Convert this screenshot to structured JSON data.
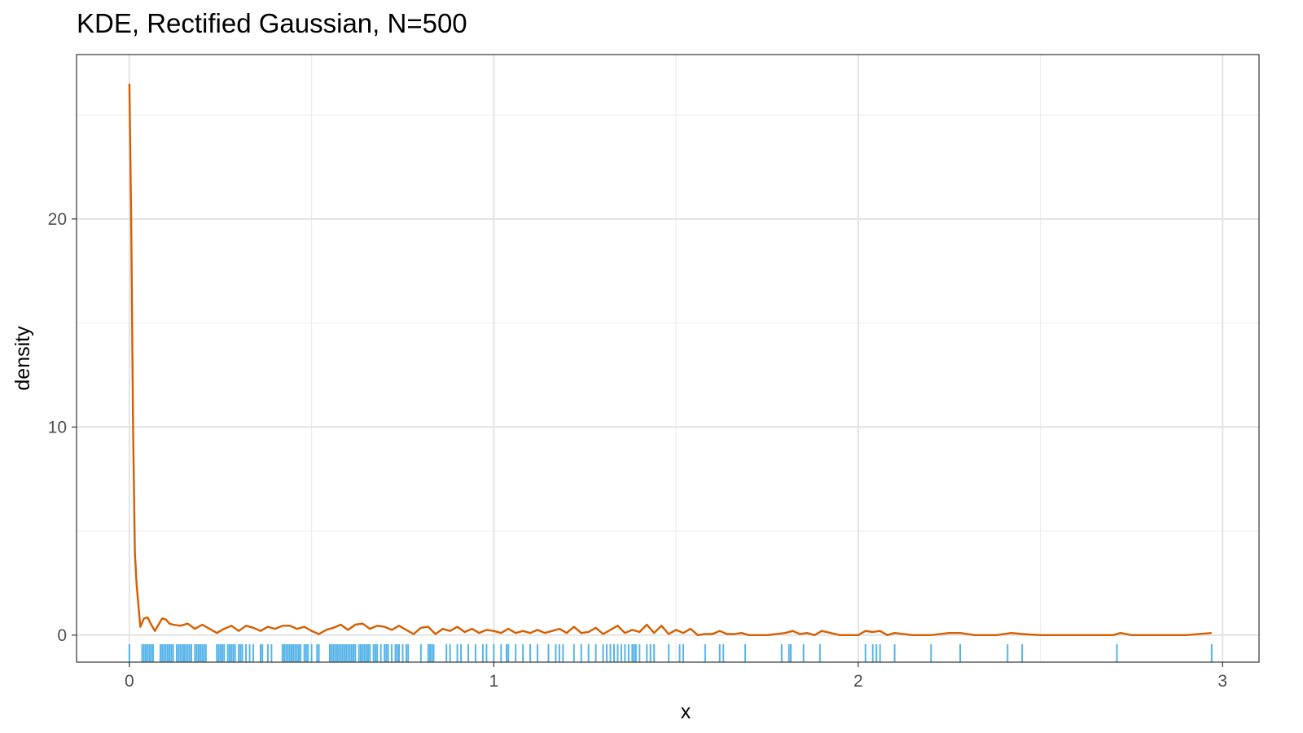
{
  "chart_data": {
    "type": "line",
    "title": "KDE, Rectified Gaussian, N=500",
    "xlabel": "x",
    "ylabel": "density",
    "xlim": [
      -0.145,
      3.1
    ],
    "ylim": [
      -1.3,
      27.9
    ],
    "x_ticks": [
      0,
      1,
      2,
      3
    ],
    "y_ticks": [
      0,
      10,
      20
    ],
    "x_tick_labels": [
      "0",
      "1",
      "2",
      "3"
    ],
    "y_tick_labels": [
      "0",
      "10",
      "20"
    ],
    "minor_x": [
      0.5,
      1.5,
      2.5
    ],
    "minor_y": [
      5,
      15,
      25
    ],
    "grid": true,
    "series": [
      {
        "color": "#D55E00",
        "x": [
          0,
          0.005,
          0.01,
          0.015,
          0.02,
          0.03,
          0.04,
          0.05,
          0.06,
          0.07,
          0.08,
          0.09,
          0.1,
          0.11,
          0.12,
          0.14,
          0.16,
          0.18,
          0.2,
          0.22,
          0.24,
          0.26,
          0.28,
          0.3,
          0.32,
          0.34,
          0.36,
          0.38,
          0.4,
          0.42,
          0.44,
          0.46,
          0.48,
          0.5,
          0.52,
          0.54,
          0.56,
          0.58,
          0.6,
          0.62,
          0.64,
          0.66,
          0.68,
          0.7,
          0.72,
          0.74,
          0.76,
          0.78,
          0.8,
          0.82,
          0.84,
          0.86,
          0.88,
          0.9,
          0.92,
          0.94,
          0.96,
          0.98,
          1.0,
          1.02,
          1.04,
          1.06,
          1.08,
          1.1,
          1.12,
          1.14,
          1.16,
          1.18,
          1.2,
          1.22,
          1.24,
          1.26,
          1.28,
          1.3,
          1.32,
          1.34,
          1.36,
          1.38,
          1.4,
          1.42,
          1.44,
          1.46,
          1.48,
          1.5,
          1.52,
          1.54,
          1.56,
          1.58,
          1.6,
          1.62,
          1.64,
          1.66,
          1.68,
          1.7,
          1.75,
          1.8,
          1.82,
          1.84,
          1.86,
          1.88,
          1.9,
          1.95,
          2.0,
          2.02,
          2.04,
          2.06,
          2.08,
          2.1,
          2.15,
          2.2,
          2.25,
          2.28,
          2.32,
          2.38,
          2.42,
          2.45,
          2.5,
          2.6,
          2.7,
          2.72,
          2.75,
          2.8,
          2.9,
          2.97
        ],
        "y": [
          26.5,
          20.0,
          10.0,
          4.0,
          2.4,
          0.4,
          0.8,
          0.85,
          0.5,
          0.2,
          0.5,
          0.8,
          0.75,
          0.55,
          0.5,
          0.45,
          0.55,
          0.3,
          0.5,
          0.3,
          0.1,
          0.3,
          0.45,
          0.2,
          0.45,
          0.35,
          0.2,
          0.4,
          0.3,
          0.45,
          0.45,
          0.3,
          0.4,
          0.2,
          0.05,
          0.25,
          0.35,
          0.5,
          0.25,
          0.5,
          0.55,
          0.3,
          0.45,
          0.4,
          0.25,
          0.45,
          0.25,
          0.05,
          0.35,
          0.4,
          0.05,
          0.3,
          0.2,
          0.4,
          0.15,
          0.3,
          0.1,
          0.25,
          0.2,
          0.1,
          0.3,
          0.1,
          0.2,
          0.1,
          0.25,
          0.1,
          0.2,
          0.3,
          0.1,
          0.4,
          0.1,
          0.15,
          0.35,
          0.05,
          0.25,
          0.45,
          0.1,
          0.25,
          0.15,
          0.5,
          0.1,
          0.45,
          0.05,
          0.25,
          0.1,
          0.3,
          0.0,
          0.05,
          0.05,
          0.2,
          0.05,
          0.05,
          0.1,
          0.0,
          0.0,
          0.1,
          0.2,
          0.05,
          0.1,
          0.0,
          0.2,
          0.0,
          0.0,
          0.2,
          0.15,
          0.2,
          0.0,
          0.1,
          0.0,
          0.0,
          0.1,
          0.1,
          0.0,
          0.0,
          0.1,
          0.05,
          0.0,
          0.0,
          0.0,
          0.1,
          0.0,
          0.0,
          0.0,
          0.1
        ]
      }
    ],
    "rug": {
      "color": "#56B4E9",
      "x": [
        0.0,
        0.035,
        0.04,
        0.045,
        0.05,
        0.055,
        0.06,
        0.065,
        0.085,
        0.09,
        0.095,
        0.1,
        0.105,
        0.11,
        0.115,
        0.12,
        0.13,
        0.135,
        0.14,
        0.145,
        0.15,
        0.155,
        0.16,
        0.165,
        0.17,
        0.18,
        0.185,
        0.19,
        0.195,
        0.2,
        0.205,
        0.21,
        0.24,
        0.245,
        0.25,
        0.255,
        0.26,
        0.27,
        0.275,
        0.28,
        0.285,
        0.29,
        0.3,
        0.305,
        0.31,
        0.32,
        0.33,
        0.34,
        0.36,
        0.365,
        0.38,
        0.39,
        0.42,
        0.425,
        0.43,
        0.435,
        0.44,
        0.445,
        0.45,
        0.455,
        0.46,
        0.465,
        0.47,
        0.48,
        0.485,
        0.49,
        0.5,
        0.515,
        0.52,
        0.55,
        0.555,
        0.56,
        0.565,
        0.57,
        0.575,
        0.58,
        0.585,
        0.59,
        0.595,
        0.6,
        0.605,
        0.61,
        0.615,
        0.62,
        0.63,
        0.635,
        0.64,
        0.645,
        0.65,
        0.655,
        0.66,
        0.67,
        0.675,
        0.68,
        0.69,
        0.7,
        0.705,
        0.71,
        0.72,
        0.73,
        0.735,
        0.74,
        0.75,
        0.76,
        0.765,
        0.8,
        0.82,
        0.825,
        0.83,
        0.835,
        0.87,
        0.88,
        0.9,
        0.91,
        0.93,
        0.95,
        0.97,
        0.98,
        1.0,
        1.02,
        1.035,
        1.04,
        1.06,
        1.08,
        1.1,
        1.12,
        1.15,
        1.17,
        1.18,
        1.19,
        1.22,
        1.24,
        1.26,
        1.28,
        1.3,
        1.31,
        1.32,
        1.33,
        1.34,
        1.35,
        1.36,
        1.37,
        1.38,
        1.385,
        1.39,
        1.4,
        1.42,
        1.43,
        1.44,
        1.48,
        1.51,
        1.52,
        1.58,
        1.62,
        1.63,
        1.69,
        1.79,
        1.81,
        1.815,
        1.85,
        1.895,
        2.02,
        2.04,
        2.05,
        2.06,
        2.1,
        2.2,
        2.28,
        2.41,
        2.45,
        2.71,
        2.97
      ]
    }
  }
}
